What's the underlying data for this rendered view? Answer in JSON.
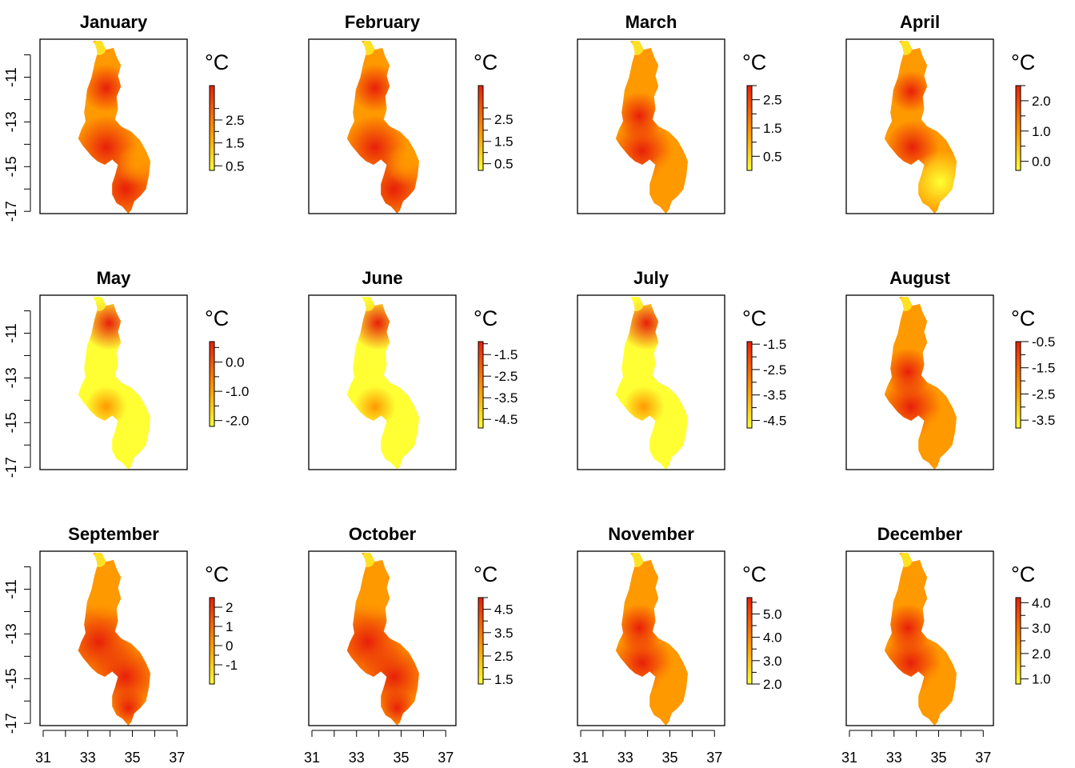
{
  "figure": {
    "unit_label": "°C"
  },
  "colors": {
    "low": "#FFFF33",
    "mid": "#FF9900",
    "high": "#E8200A",
    "frame": "#000000",
    "background": "#ffffff"
  },
  "chart_data": {
    "type": "heatmap",
    "layout": "3 rows x 4 columns of map panels",
    "x_ticks": [
      31,
      33,
      35,
      37
    ],
    "x_minor_ticks": [
      32,
      34,
      36
    ],
    "y_ticks": [
      -11,
      -13,
      -15,
      -17
    ],
    "y_minor_ticks": [
      -10,
      -12,
      -14,
      -16
    ],
    "xlim": [
      31,
      37.6
    ],
    "ylim": [
      -17.1,
      -9.3
    ],
    "x_axis_shown_on": "bottom row",
    "y_axis_shown_on": "left column",
    "legend_placement": "right of each panel",
    "panels": [
      {
        "title": "January",
        "legend_ticks": [
          "2.5",
          "1.5",
          "0.5"
        ],
        "legend_minor_ticks": [
          3.0,
          2.0,
          1.0
        ],
        "legend_range": [
          0.3,
          4.0
        ],
        "pattern": "hot-south"
      },
      {
        "title": "February",
        "legend_ticks": [
          "2.5",
          "1.5",
          "0.5"
        ],
        "legend_minor_ticks": [
          3.0,
          2.0,
          1.0
        ],
        "legend_range": [
          0.2,
          4.0
        ],
        "pattern": "hot-south"
      },
      {
        "title": "March",
        "legend_ticks": [
          "2.5",
          "1.5",
          "0.5"
        ],
        "legend_minor_ticks": [
          3.0,
          2.0,
          1.0
        ],
        "legend_range": [
          0.0,
          3.0
        ],
        "pattern": "hot-center"
      },
      {
        "title": "April",
        "legend_ticks": [
          "2.0",
          "1.0",
          "0.0"
        ],
        "legend_minor_ticks": [
          2.5,
          1.5,
          0.5
        ],
        "legend_range": [
          -0.3,
          2.5
        ],
        "pattern": "cool-south"
      },
      {
        "title": "May",
        "legend_ticks": [
          "0.0",
          "-1.0",
          "-2.0"
        ],
        "legend_minor_ticks": [
          0.5,
          -0.5,
          -1.5
        ],
        "legend_range": [
          -2.2,
          0.7
        ],
        "pattern": "hot-north"
      },
      {
        "title": "June",
        "legend_ticks": [
          "-1.5",
          "-2.5",
          "-3.5",
          "-4.5"
        ],
        "legend_minor_ticks": [
          -1.0,
          -2.0,
          -3.0,
          -4.0
        ],
        "legend_range": [
          -4.9,
          -0.9
        ],
        "pattern": "hot-north"
      },
      {
        "title": "July",
        "legend_ticks": [
          "-1.5",
          "-2.5",
          "-3.5",
          "-4.5"
        ],
        "legend_minor_ticks": [
          -2.0,
          -3.0,
          -4.0
        ],
        "legend_range": [
          -4.8,
          -1.4
        ],
        "pattern": "hot-north"
      },
      {
        "title": "August",
        "legend_ticks": [
          "-0.5",
          "-1.5",
          "-2.5",
          "-3.5"
        ],
        "legend_minor_ticks": [
          -1.0,
          -2.0,
          -3.0
        ],
        "legend_range": [
          -3.8,
          -0.5
        ],
        "pattern": "hot-center"
      },
      {
        "title": "September",
        "legend_ticks": [
          "2",
          "1",
          "0",
          "-1"
        ],
        "legend_minor_ticks": [
          1.5,
          0.5,
          -0.5,
          -1.5
        ],
        "legend_range": [
          -2.0,
          2.5
        ],
        "pattern": "hot-all"
      },
      {
        "title": "October",
        "legend_ticks": [
          "4.5",
          "3.5",
          "2.5",
          "1.5"
        ],
        "legend_minor_ticks": [
          5.0,
          4.0,
          3.0,
          2.0
        ],
        "legend_range": [
          1.3,
          5.0
        ],
        "pattern": "hot-all"
      },
      {
        "title": "November",
        "legend_ticks": [
          "5.0",
          "4.0",
          "3.0",
          "2.0"
        ],
        "legend_minor_ticks": [
          5.5,
          4.5,
          3.5,
          2.5
        ],
        "legend_range": [
          2.0,
          5.7
        ],
        "pattern": "hot-center"
      },
      {
        "title": "December",
        "legend_ticks": [
          "4.0",
          "3.0",
          "2.0",
          "1.0"
        ],
        "legend_minor_ticks": [
          4.5,
          3.5,
          2.5,
          1.5
        ],
        "legend_range": [
          0.8,
          4.2
        ],
        "pattern": "hot-center"
      }
    ]
  }
}
